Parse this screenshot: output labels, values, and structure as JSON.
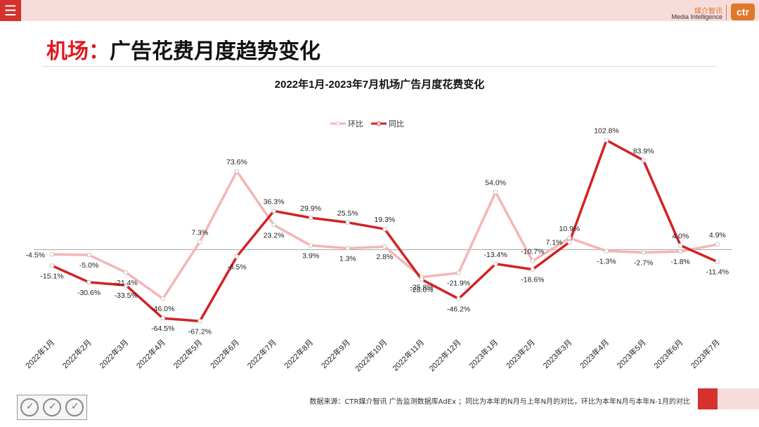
{
  "header": {
    "logo_cn": "媒介智讯",
    "logo_en": "Media Intelligence",
    "logo_mark": "ctr",
    "menu_icon": "hamburger-icon"
  },
  "page": {
    "title_highlight": "机场：",
    "title_rest": "广告花费月度趋势变化"
  },
  "chart_data": {
    "type": "line",
    "title": "2022年1月-2023年7月机场广告月度花费变化",
    "categories": [
      "2022年1月",
      "2022年2月",
      "2022年3月",
      "2022年4月",
      "2022年5月",
      "2022年6月",
      "2022年7月",
      "2022年8月",
      "2022年9月",
      "2022年10月",
      "2022年11月",
      "2022年12月",
      "2023年1月",
      "2023年2月",
      "2023年3月",
      "2023年4月",
      "2023年5月",
      "2023年6月",
      "2023年7月"
    ],
    "series": [
      {
        "name": "环比",
        "color": "#f5b5b5",
        "values": [
          -4.5,
          -5.0,
          -21.4,
          -46.0,
          7.3,
          73.6,
          23.2,
          3.9,
          1.3,
          2.8,
          -25.8,
          -21.9,
          54.0,
          -10.7,
          10.9,
          -1.3,
          -2.7,
          -1.8,
          4.9
        ],
        "labels": [
          "-4.5%",
          "-5.0%",
          "-21.4%",
          "-46.0%",
          "7.3%",
          "73.6%",
          "23.2%",
          "3.9%",
          "1.3%",
          "2.8%",
          "-25.8%",
          "-21.9%",
          "54.0%",
          "-10.7%",
          "10.9%",
          "-1.3%",
          "-2.7%",
          "-1.8%",
          "4.9%"
        ]
      },
      {
        "name": "同比",
        "color": "#d32222",
        "values": [
          -15.1,
          -30.6,
          -33.5,
          -64.5,
          -67.2,
          -6.5,
          36.3,
          29.9,
          25.5,
          19.3,
          -28.0,
          -46.2,
          -13.4,
          -18.6,
          7.1,
          102.8,
          83.9,
          4.0,
          -11.4
        ],
        "labels": [
          "-15.1%",
          "-30.6%",
          "-33.5%",
          "-64.5%",
          "-67.2%",
          "-6.5%",
          "36.3%",
          "29.9%",
          "25.5%",
          "19.3%",
          "-28.0%",
          "-46.2%",
          "-13.4%",
          "-18.6%",
          "7.1%",
          "102.8%",
          "83.9%",
          "4.0%",
          "-11.4%"
        ]
      }
    ],
    "ylim": [
      -100,
      125
    ],
    "legend": "top-center",
    "grid": false
  },
  "footer": {
    "source": "数据来源：CTR媒介智讯 广告监测数据库AdEx ；同比为本年的N月与上年N月的对比，环比为本年N月与本年N-1月的对比"
  }
}
